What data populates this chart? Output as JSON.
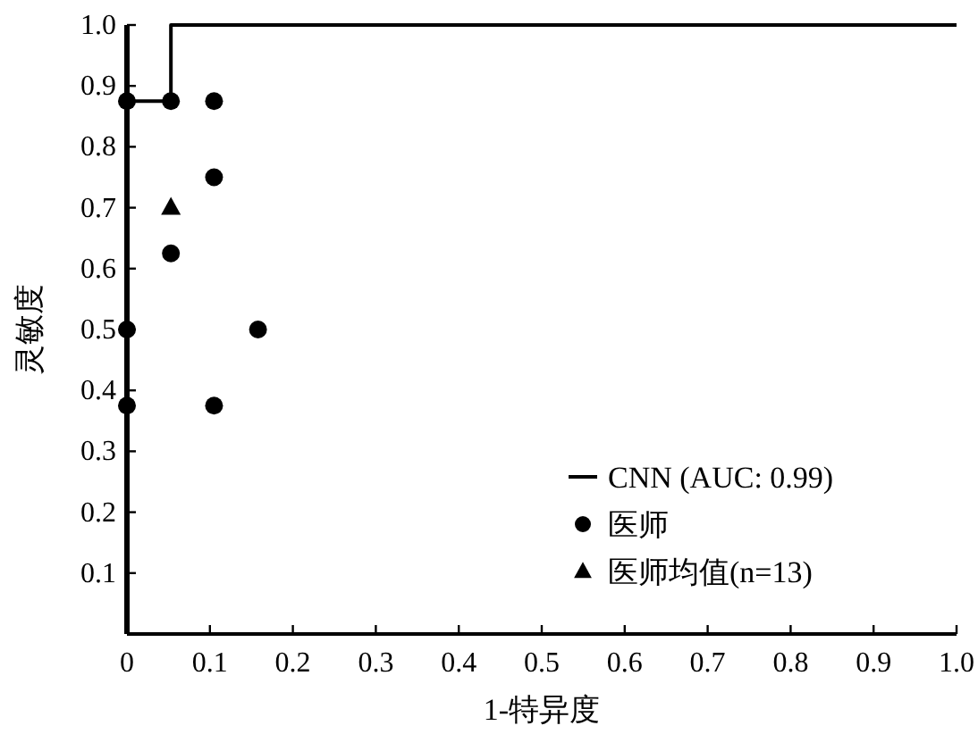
{
  "chart_data": {
    "type": "scatter",
    "xlabel": "1-特异度",
    "ylabel": "灵敏度",
    "xlim": [
      0,
      1
    ],
    "ylim": [
      0,
      1
    ],
    "xticks": [
      0,
      0.1,
      0.2,
      0.3,
      0.4,
      0.5,
      0.6,
      0.7,
      0.8,
      0.9,
      {
        "value": 1,
        "label": "1.0"
      }
    ],
    "yticks": [
      0.1,
      0.2,
      0.3,
      0.4,
      0.5,
      0.6,
      0.7,
      0.8,
      0.9,
      {
        "value": 1,
        "label": "1.0"
      }
    ],
    "grid": false,
    "legend": "bottom right",
    "series": [
      {
        "name": "CNN (AUC: 0.99)",
        "type": "line",
        "color": "#000000",
        "marker": "none",
        "x": [
          0,
          0,
          0.053,
          0.053,
          1
        ],
        "values": [
          0,
          0.875,
          0.875,
          1,
          1
        ]
      },
      {
        "name": "医师",
        "color": "#000000",
        "marker": "circle",
        "x": [
          0,
          0.053,
          0.105,
          0.105,
          0.053,
          0,
          0.158,
          0,
          0.105
        ],
        "values": [
          0.875,
          0.875,
          0.875,
          0.75,
          0.625,
          0.5,
          0.5,
          0.375,
          0.375
        ]
      },
      {
        "name": "医师均值(n=13)",
        "color": "#000000",
        "marker": "triangle",
        "x": [
          0.053
        ],
        "values": [
          0.7
        ]
      }
    ]
  }
}
